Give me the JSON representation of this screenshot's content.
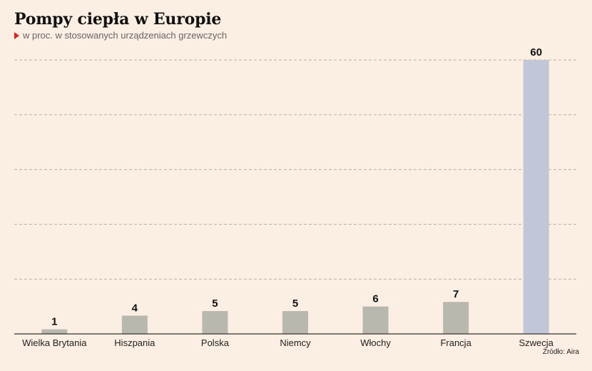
{
  "chart_data": {
    "type": "bar",
    "title": "Pompy ciepła w Europie",
    "subtitle": "w proc. w stosowanych urządzeniach grzewczych",
    "source": "Źródło: Aira",
    "categories": [
      "Wielka Brytania",
      "Hiszpania",
      "Polska",
      "Niemcy",
      "Włochy",
      "Francja",
      "Szwecja"
    ],
    "values": [
      1,
      4,
      5,
      5,
      6,
      7,
      60
    ],
    "value_labels": [
      "1",
      "4",
      "5",
      "5",
      "6",
      "7",
      "60"
    ],
    "highlight_category": "Szwecja",
    "ylim": [
      0,
      60
    ],
    "grid": true,
    "colors": {
      "bar": "#b9b8ae",
      "highlight": "#c2c7d8",
      "grid": "#b8b0a6",
      "axis": "#333333",
      "marker": "#e02020"
    }
  }
}
